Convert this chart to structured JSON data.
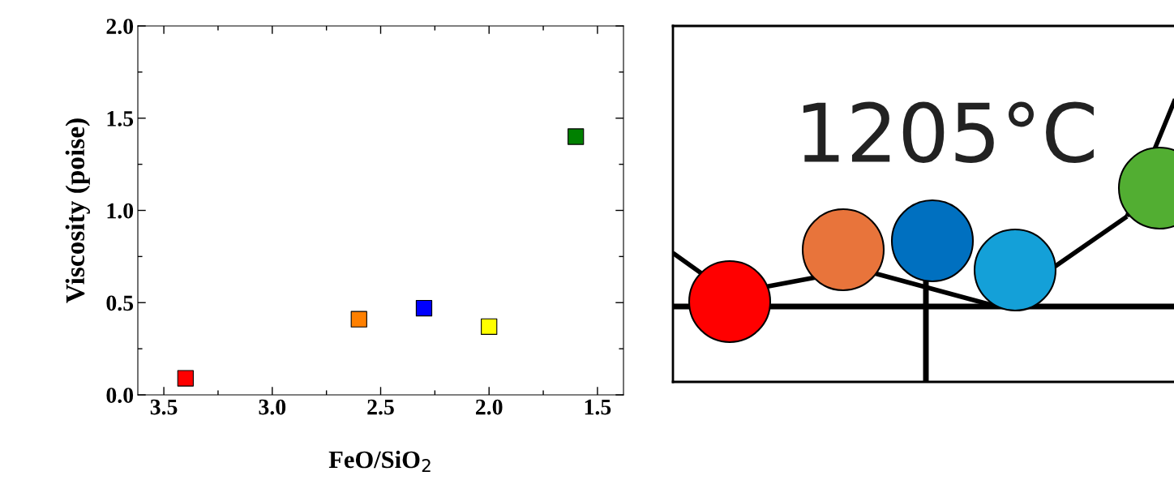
{
  "chart_data": [
    {
      "type": "scatter",
      "xlabel": "FeO/SiO$_{2}$",
      "ylabel": "Viscosity (poise)",
      "x": [
        3.4,
        2.6,
        2.3,
        2.0,
        1.6
      ],
      "values": [
        0.09,
        0.41,
        0.47,
        0.37,
        1.4
      ],
      "colors": [
        "#ff0000",
        "#ff8000",
        "#0000ff",
        "#ffff00",
        "#008000"
      ],
      "marker": "square",
      "xlim": [
        3.62,
        1.38
      ],
      "ylim": [
        0,
        2.0
      ],
      "xticks": [
        {
          "value": 3.5,
          "label": "3.5"
        },
        {
          "value": 3.0,
          "label": "3.0"
        },
        {
          "value": 2.5,
          "label": "2.5"
        },
        {
          "value": 2.0,
          "label": "2.0"
        },
        {
          "value": 1.5,
          "label": "1.5"
        }
      ],
      "yticks": [
        {
          "value": 0,
          "label": "0.0"
        },
        {
          "value": 0.5,
          "label": "0.5"
        },
        {
          "value": 1.0,
          "label": "1.0"
        },
        {
          "value": 1.5,
          "label": "1.5"
        },
        {
          "value": 2.0,
          "label": "2.0"
        }
      ],
      "grid": false,
      "legend": false
    },
    {
      "type": "other",
      "annotations": [
        "1205°C"
      ]
    }
  ]
}
